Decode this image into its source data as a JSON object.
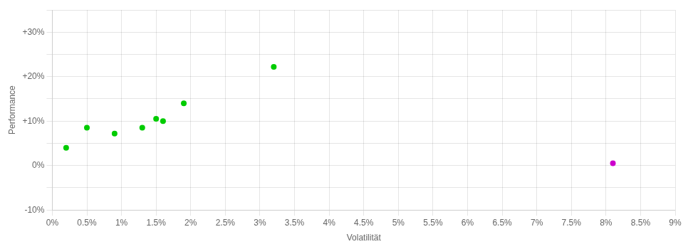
{
  "chart_data": {
    "type": "scatter",
    "xlabel": "Volatilität",
    "ylabel": "Performance",
    "series": [
      {
        "color": "#00cc00",
        "x": [
          0.002,
          0.005,
          0.009,
          0.013,
          0.015,
          0.016,
          0.019,
          0.032
        ],
        "values": [
          0.04,
          0.085,
          0.072,
          0.085,
          0.105,
          0.1,
          0.14,
          0.222
        ]
      },
      {
        "color": "#cc00cc",
        "x": [
          0.081
        ],
        "values": [
          0.005
        ]
      }
    ],
    "xlim": [
      0,
      0.09
    ],
    "ylim": [
      -0.1,
      0.35
    ],
    "xticks": [
      {
        "value": 0.0,
        "label": "0%"
      },
      {
        "value": 0.005,
        "label": "0.5%"
      },
      {
        "value": 0.01,
        "label": "1%"
      },
      {
        "value": 0.015,
        "label": "1.5%"
      },
      {
        "value": 0.02,
        "label": "2%"
      },
      {
        "value": 0.025,
        "label": "2.5%"
      },
      {
        "value": 0.03,
        "label": "3%"
      },
      {
        "value": 0.035,
        "label": "3.5%"
      },
      {
        "value": 0.04,
        "label": "4%"
      },
      {
        "value": 0.045,
        "label": "4.5%"
      },
      {
        "value": 0.05,
        "label": "5%"
      },
      {
        "value": 0.055,
        "label": "5.5%"
      },
      {
        "value": 0.06,
        "label": "6%"
      },
      {
        "value": 0.065,
        "label": "6.5%"
      },
      {
        "value": 0.07,
        "label": "7%"
      },
      {
        "value": 0.075,
        "label": "7.5%"
      },
      {
        "value": 0.08,
        "label": "8%"
      },
      {
        "value": 0.085,
        "label": "8.5%"
      },
      {
        "value": 0.09,
        "label": "9%"
      }
    ],
    "yticks": [
      {
        "value": -0.1,
        "label": "-10%"
      },
      {
        "value": -0.05,
        "label": ""
      },
      {
        "value": 0.0,
        "label": "0%"
      },
      {
        "value": 0.05,
        "label": ""
      },
      {
        "value": 0.1,
        "label": "+10%"
      },
      {
        "value": 0.15,
        "label": ""
      },
      {
        "value": 0.2,
        "label": "+20%"
      },
      {
        "value": 0.25,
        "label": ""
      },
      {
        "value": 0.3,
        "label": "+30%"
      },
      {
        "value": 0.35,
        "label": ""
      }
    ],
    "grid": true
  }
}
